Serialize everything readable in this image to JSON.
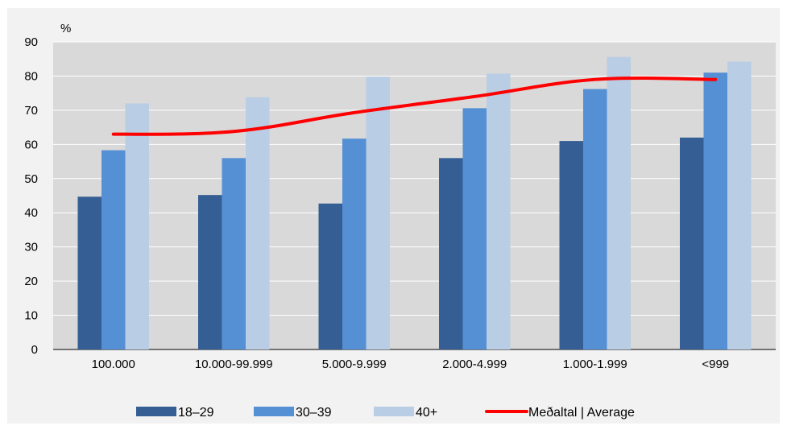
{
  "chart_data": {
    "type": "bar",
    "unit_label": "%",
    "ylim": [
      0,
      90
    ],
    "yticks": [
      0,
      10,
      20,
      30,
      40,
      50,
      60,
      70,
      80,
      90
    ],
    "grid": true,
    "legend_position": "bottom",
    "categories": [
      "100.000",
      "10.000-99.999",
      "5.000-9.999",
      "2.000-4.999",
      "1.000-1.999",
      "<999"
    ],
    "series": [
      {
        "name": "18–29",
        "color": "#355f94",
        "values": [
          44.7,
          45.2,
          42.7,
          56.0,
          61.0,
          62.0
        ]
      },
      {
        "name": "30–39",
        "color": "#5590d5",
        "values": [
          58.3,
          56.0,
          61.7,
          70.6,
          76.2,
          81.0
        ]
      },
      {
        "name": "40+",
        "color": "#b9cde4",
        "values": [
          72.0,
          73.8,
          79.8,
          80.7,
          85.6,
          84.2
        ]
      }
    ],
    "line": {
      "name": "Meðaltal | Average",
      "color": "#ff0000",
      "values": [
        63.0,
        63.8,
        69.3,
        74.0,
        79.0,
        79.0
      ]
    }
  }
}
